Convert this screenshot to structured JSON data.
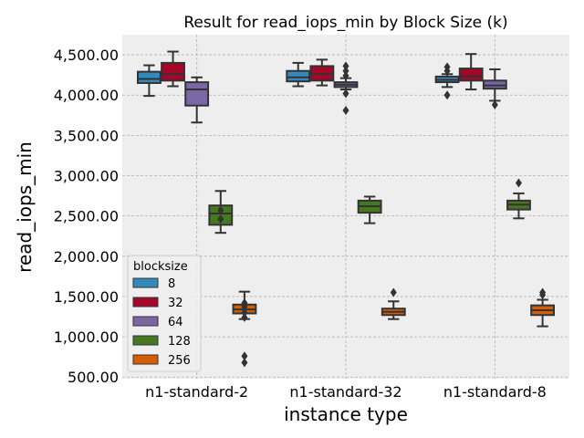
{
  "chart_data": {
    "type": "box",
    "title": "Result for read_iops_min by Block Size (k)",
    "xlabel": "instance type",
    "ylabel": "read_iops_min",
    "categories": [
      "n1-standard-2",
      "n1-standard-32",
      "n1-standard-8"
    ],
    "ylim": [
      480,
      4750
    ],
    "yticks": [
      500,
      1000,
      1500,
      2000,
      2500,
      3000,
      3500,
      4000,
      4500
    ],
    "ytick_labels": [
      "500.00",
      "1,000.00",
      "1,500.00",
      "2,000.00",
      "2,500.00",
      "3,000.00",
      "3,500.00",
      "4,000.00",
      "4,500.00"
    ],
    "grid": true,
    "legend": {
      "title": "blocksize",
      "position": "lower-left"
    },
    "series": [
      {
        "name": "8",
        "color": "#348abd",
        "boxes": [
          {
            "whisker_low": 3990,
            "q1": 4150,
            "median": 4200,
            "q3": 4290,
            "whisker_high": 4370,
            "outliers": []
          },
          {
            "whisker_low": 4110,
            "q1": 4170,
            "median": 4220,
            "q3": 4300,
            "whisker_high": 4400,
            "outliers": []
          },
          {
            "whisker_low": 4100,
            "q1": 4160,
            "median": 4190,
            "q3": 4230,
            "whisker_high": 4260,
            "outliers": [
              4350,
              4300,
              4000
            ]
          }
        ]
      },
      {
        "name": "32",
        "color": "#a60628",
        "boxes": [
          {
            "whisker_low": 4110,
            "q1": 4180,
            "median": 4260,
            "q3": 4400,
            "whisker_high": 4540,
            "outliers": []
          },
          {
            "whisker_low": 4120,
            "q1": 4180,
            "median": 4260,
            "q3": 4360,
            "whisker_high": 4440,
            "outliers": []
          },
          {
            "whisker_low": 4070,
            "q1": 4180,
            "median": 4230,
            "q3": 4330,
            "whisker_high": 4510,
            "outliers": []
          }
        ]
      },
      {
        "name": "64",
        "color": "#7a68a6",
        "boxes": [
          {
            "whisker_low": 3660,
            "q1": 3870,
            "median": 4070,
            "q3": 4160,
            "whisker_high": 4220,
            "outliers": []
          },
          {
            "whisker_low": 4070,
            "q1": 4100,
            "median": 4130,
            "q3": 4160,
            "whisker_high": 4210,
            "outliers": [
              4360,
              4300,
              4240,
              4020,
              3810
            ]
          },
          {
            "whisker_low": 3930,
            "q1": 4080,
            "median": 4120,
            "q3": 4180,
            "whisker_high": 4320,
            "outliers": [
              3880
            ]
          }
        ]
      },
      {
        "name": "128",
        "color": "#467821",
        "boxes": [
          {
            "whisker_low": 2290,
            "q1": 2390,
            "median": 2530,
            "q3": 2630,
            "whisker_high": 2810,
            "outliers": [
              2570,
              2460
            ]
          },
          {
            "whisker_low": 2410,
            "q1": 2540,
            "median": 2620,
            "q3": 2690,
            "whisker_high": 2740,
            "outliers": []
          },
          {
            "whisker_low": 2470,
            "q1": 2580,
            "median": 2640,
            "q3": 2690,
            "whisker_high": 2780,
            "outliers": [
              2910
            ]
          }
        ]
      },
      {
        "name": "256",
        "color": "#d55e00",
        "boxes": [
          {
            "whisker_low": 1220,
            "q1": 1290,
            "median": 1340,
            "q3": 1400,
            "whisker_high": 1560,
            "outliers": [
              1420,
              1370,
              1300,
              1240,
              760,
              680
            ]
          },
          {
            "whisker_low": 1220,
            "q1": 1270,
            "median": 1310,
            "q3": 1350,
            "whisker_high": 1440,
            "outliers": [
              1550
            ]
          },
          {
            "whisker_low": 1130,
            "q1": 1270,
            "median": 1330,
            "q3": 1390,
            "whisker_high": 1460,
            "outliers": [
              1550,
              1520
            ]
          }
        ]
      }
    ]
  }
}
